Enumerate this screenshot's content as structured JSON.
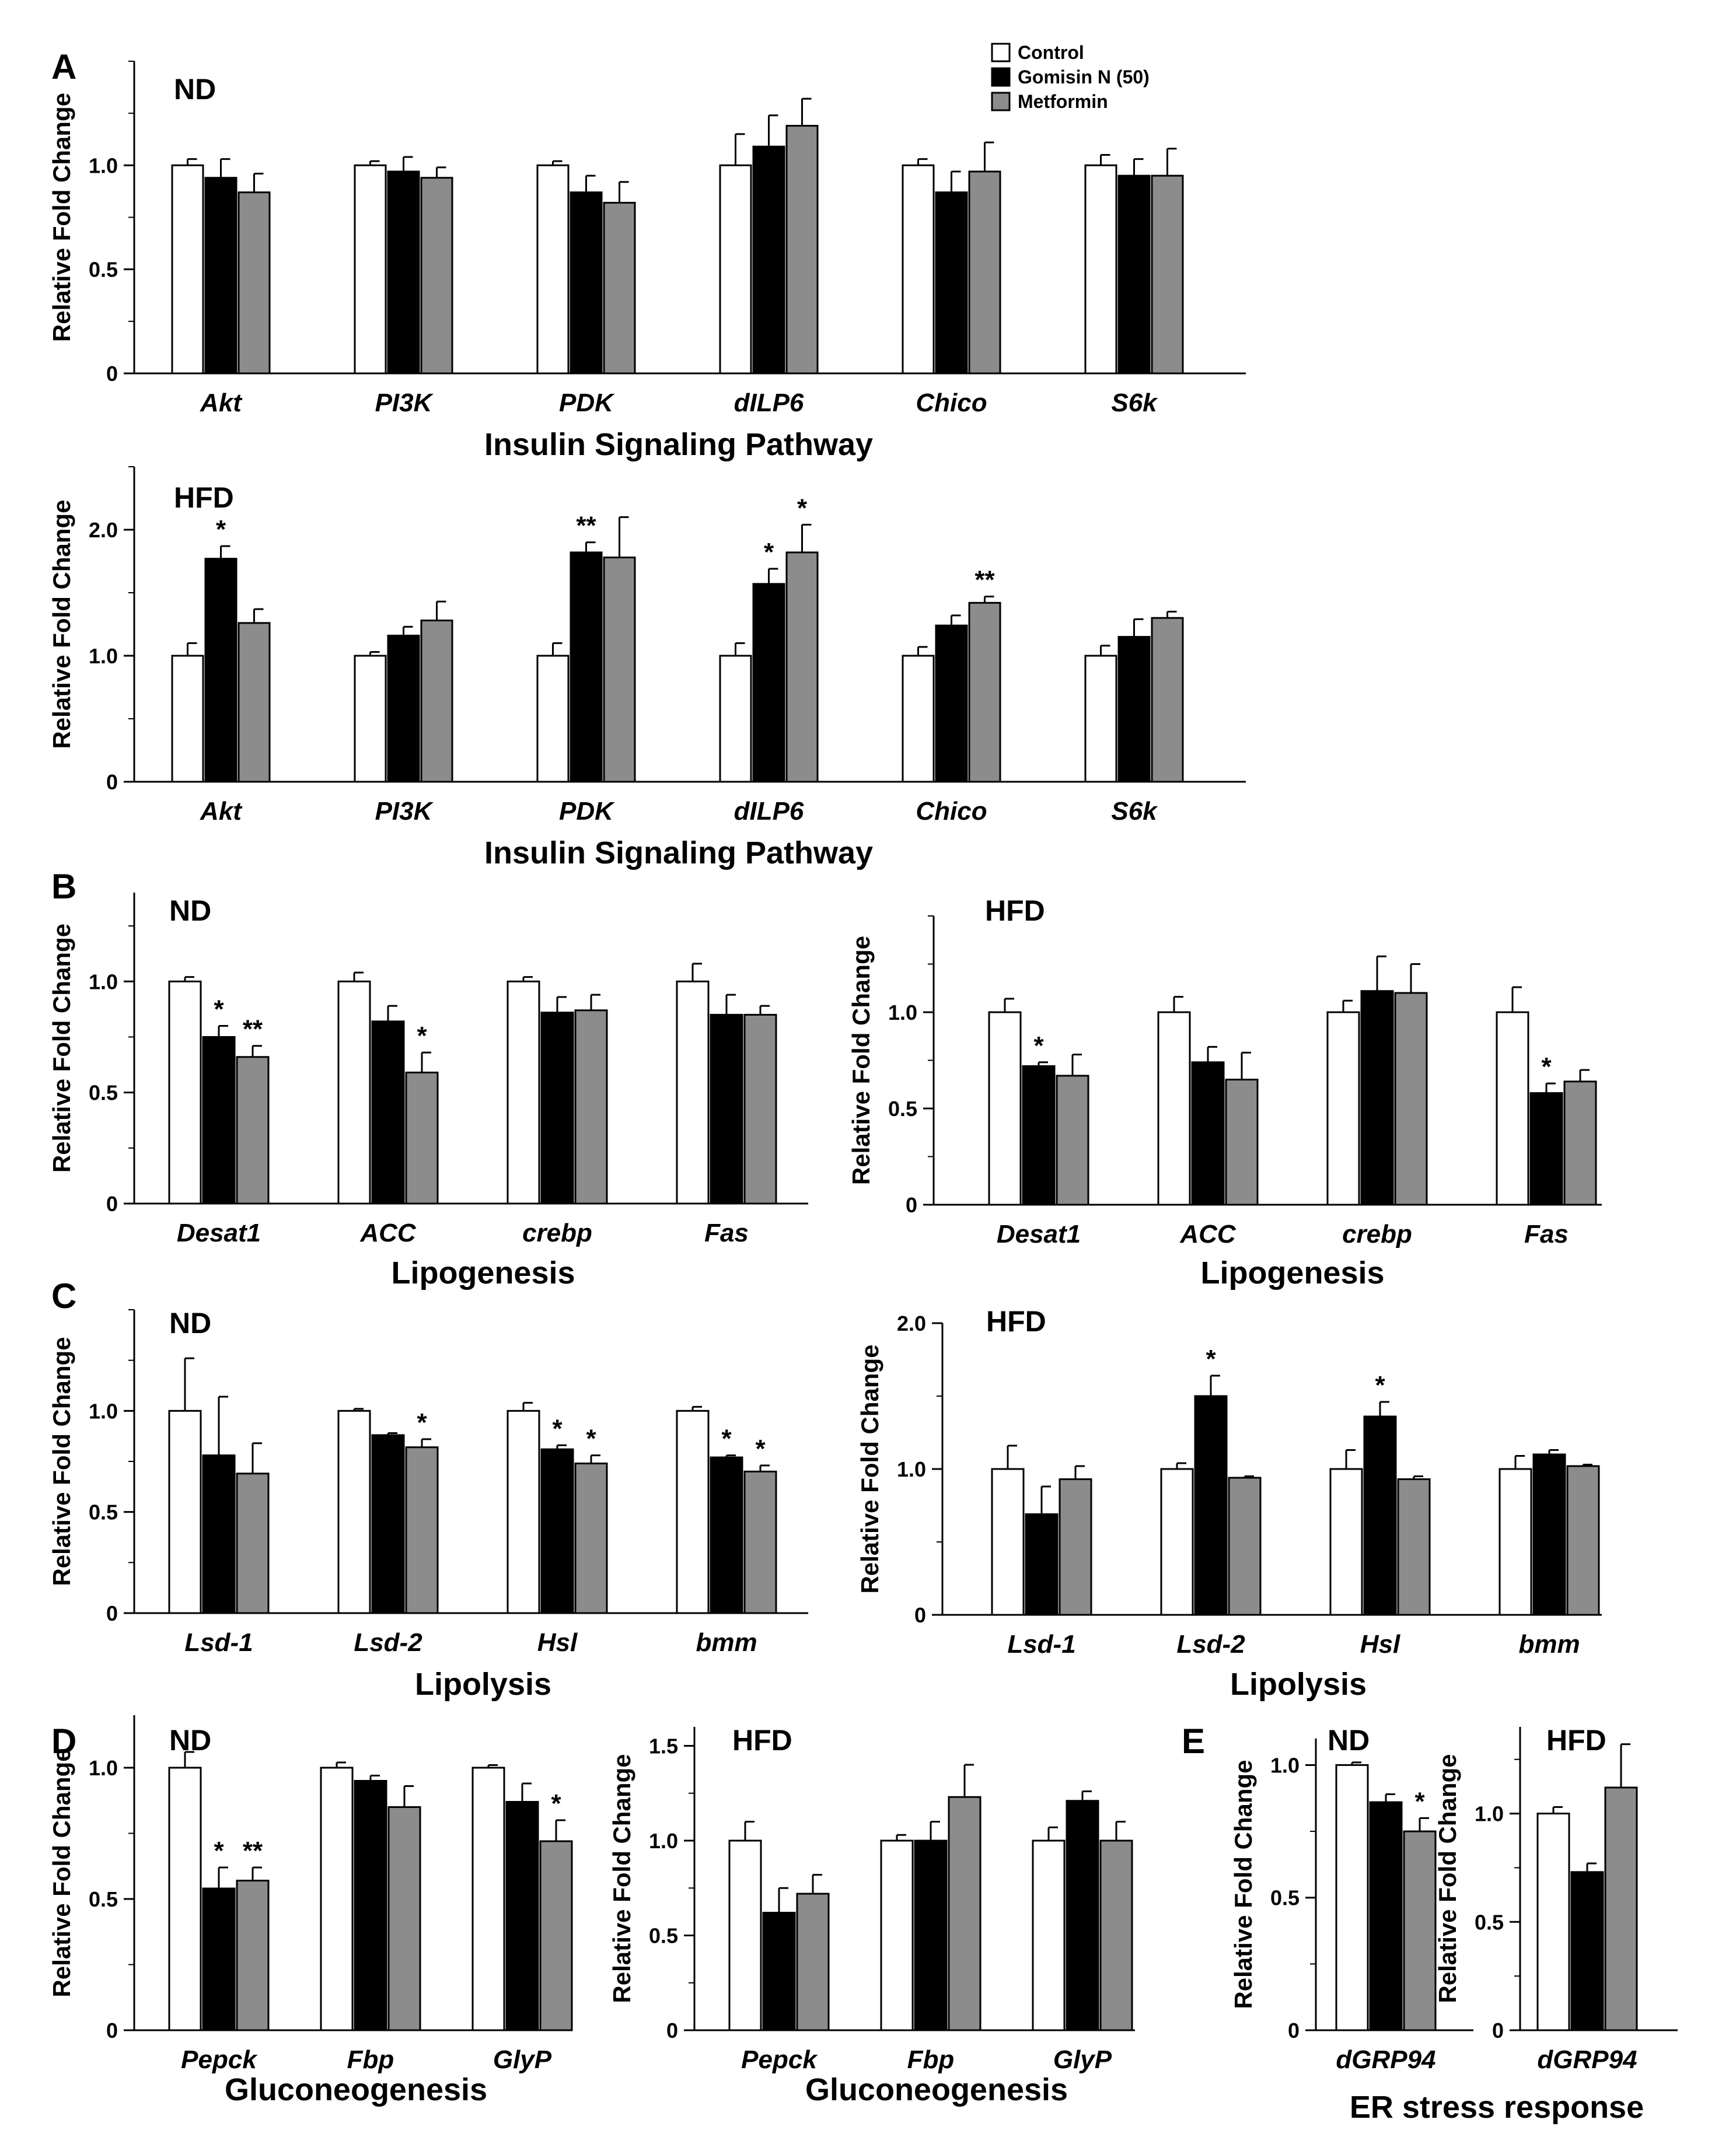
{
  "colors": {
    "control": "#ffffff",
    "gomisin": "#000000",
    "metformin": "#8c8c8c",
    "stroke": "#000000"
  },
  "legend": [
    "Control",
    "Gomisin N (50)",
    "Metformin"
  ],
  "series_names": [
    "Control",
    "Gomisin N (50)",
    "Metformin"
  ],
  "ylabel": "Relative Fold Change",
  "chart_data": [
    {
      "id": "A-ND",
      "panel_letter": "A",
      "type": "bar",
      "title": "ND",
      "xlabel": "Insulin Signaling Pathway",
      "categories": [
        "Akt",
        "PI3K",
        "PDK",
        "dILP6",
        "Chico",
        "S6k"
      ],
      "ylim": [
        0,
        1.5
      ],
      "yticks": [
        "1.0",
        "0.5",
        "0"
      ],
      "series": [
        {
          "name": "Control",
          "values": [
            1.0,
            1.0,
            1.0,
            1.0,
            1.0,
            1.0
          ],
          "errors": [
            0.03,
            0.02,
            0.02,
            0.15,
            0.03,
            0.05
          ]
        },
        {
          "name": "Gomisin N (50)",
          "values": [
            0.94,
            0.97,
            0.87,
            1.09,
            0.87,
            0.95
          ],
          "errors": [
            0.09,
            0.07,
            0.08,
            0.15,
            0.1,
            0.08
          ]
        },
        {
          "name": "Metformin",
          "values": [
            0.87,
            0.94,
            0.82,
            1.19,
            0.97,
            0.95
          ],
          "errors": [
            0.09,
            0.05,
            0.1,
            0.13,
            0.14,
            0.13
          ]
        }
      ],
      "annotations": [
        [
          "",
          "",
          ""
        ],
        [
          "",
          "",
          ""
        ],
        [
          "",
          "",
          ""
        ],
        [
          "",
          "",
          ""
        ],
        [
          "",
          "",
          ""
        ],
        [
          "",
          "",
          ""
        ]
      ]
    },
    {
      "id": "A-HFD",
      "panel_letter": "",
      "type": "bar",
      "title": "HFD",
      "xlabel": "Insulin Signaling Pathway",
      "categories": [
        "Akt",
        "PI3K",
        "PDK",
        "dILP6",
        "Chico",
        "S6k"
      ],
      "ylim": [
        0,
        2.5
      ],
      "yticks": [
        "2.0",
        "1.0",
        "0"
      ],
      "series": [
        {
          "name": "Control",
          "values": [
            1.0,
            1.0,
            1.0,
            1.0,
            1.0,
            1.0
          ],
          "errors": [
            0.1,
            0.03,
            0.1,
            0.1,
            0.07,
            0.08
          ]
        },
        {
          "name": "Gomisin N (50)",
          "values": [
            1.77,
            1.16,
            1.82,
            1.57,
            1.24,
            1.15
          ],
          "errors": [
            0.1,
            0.07,
            0.08,
            0.12,
            0.08,
            0.14
          ]
        },
        {
          "name": "Metformin",
          "values": [
            1.26,
            1.28,
            1.78,
            1.82,
            1.42,
            1.3
          ],
          "errors": [
            0.11,
            0.15,
            0.32,
            0.22,
            0.05,
            0.05
          ]
        }
      ],
      "annotations": [
        [
          "",
          "*",
          ""
        ],
        [
          "",
          "",
          ""
        ],
        [
          "",
          "**",
          ""
        ],
        [
          "",
          "*",
          "*"
        ],
        [
          "",
          "",
          "**"
        ],
        [
          "",
          "",
          ""
        ]
      ]
    },
    {
      "id": "B-ND",
      "panel_letter": "B",
      "type": "bar",
      "title": "ND",
      "xlabel": "Lipogenesis",
      "categories": [
        "Desat1",
        "ACC",
        "crebp",
        "Fas"
      ],
      "ylim": [
        0,
        1.4
      ],
      "yticks": [
        "1.0",
        "0.5",
        "0"
      ],
      "series": [
        {
          "name": "Control",
          "values": [
            1.0,
            1.0,
            1.0,
            1.0
          ],
          "errors": [
            0.02,
            0.04,
            0.02,
            0.08
          ]
        },
        {
          "name": "Gomisin N (50)",
          "values": [
            0.75,
            0.82,
            0.86,
            0.85
          ],
          "errors": [
            0.05,
            0.07,
            0.07,
            0.09
          ]
        },
        {
          "name": "Metformin",
          "values": [
            0.66,
            0.59,
            0.87,
            0.85
          ],
          "errors": [
            0.05,
            0.09,
            0.07,
            0.04
          ]
        }
      ],
      "annotations": [
        [
          "",
          "*",
          "**"
        ],
        [
          "",
          "",
          "*"
        ],
        [
          "",
          "",
          ""
        ],
        [
          "",
          "",
          ""
        ]
      ]
    },
    {
      "id": "B-HFD",
      "panel_letter": "",
      "type": "bar",
      "title": "HFD",
      "xlabel": "Lipogenesis",
      "categories": [
        "Desat1",
        "ACC",
        "crebp",
        "Fas"
      ],
      "ylim": [
        0,
        1.5
      ],
      "yticks": [
        "1.0",
        "0.5",
        "0"
      ],
      "series": [
        {
          "name": "Control",
          "values": [
            1.0,
            1.0,
            1.0,
            1.0
          ],
          "errors": [
            0.07,
            0.08,
            0.06,
            0.13
          ]
        },
        {
          "name": "Gomisin N (50)",
          "values": [
            0.72,
            0.74,
            1.11,
            0.58
          ],
          "errors": [
            0.02,
            0.08,
            0.18,
            0.05
          ]
        },
        {
          "name": "Metformin",
          "values": [
            0.67,
            0.65,
            1.1,
            0.64
          ],
          "errors": [
            0.11,
            0.14,
            0.15,
            0.06
          ]
        }
      ],
      "annotations": [
        [
          "",
          "*",
          ""
        ],
        [
          "",
          "",
          ""
        ],
        [
          "",
          "",
          ""
        ],
        [
          "",
          "*",
          ""
        ]
      ]
    },
    {
      "id": "C-ND",
      "panel_letter": "C",
      "type": "bar",
      "title": "ND",
      "xlabel": "Lipolysis",
      "categories": [
        "Lsd-1",
        "Lsd-2",
        "Hsl",
        "bmm"
      ],
      "ylim": [
        0,
        1.5
      ],
      "yticks": [
        "1.0",
        "0.5",
        "0"
      ],
      "series": [
        {
          "name": "Control",
          "values": [
            1.0,
            1.0,
            1.0,
            1.0
          ],
          "errors": [
            0.26,
            0.01,
            0.04,
            0.02
          ]
        },
        {
          "name": "Gomisin N (50)",
          "values": [
            0.78,
            0.88,
            0.81,
            0.77
          ],
          "errors": [
            0.29,
            0.01,
            0.02,
            0.01
          ]
        },
        {
          "name": "Metformin",
          "values": [
            0.69,
            0.82,
            0.74,
            0.7
          ],
          "errors": [
            0.15,
            0.04,
            0.04,
            0.03
          ]
        }
      ],
      "annotations": [
        [
          "",
          "",
          ""
        ],
        [
          "",
          "",
          "*"
        ],
        [
          "",
          "*",
          "*"
        ],
        [
          "",
          "*",
          "*"
        ]
      ]
    },
    {
      "id": "C-HFD",
      "panel_letter": "",
      "type": "bar",
      "title": "HFD",
      "xlabel": "Lipolysis",
      "categories": [
        "Lsd-1",
        "Lsd-2",
        "Hsl",
        "bmm"
      ],
      "ylim": [
        0,
        2.0
      ],
      "yticks": [
        "2.0",
        "1.0",
        "0"
      ],
      "series": [
        {
          "name": "Control",
          "values": [
            1.0,
            1.0,
            1.0,
            1.0
          ],
          "errors": [
            0.16,
            0.04,
            0.13,
            0.09
          ]
        },
        {
          "name": "Gomisin N (50)",
          "values": [
            0.69,
            1.5,
            1.36,
            1.1
          ],
          "errors": [
            0.19,
            0.14,
            0.1,
            0.03
          ]
        },
        {
          "name": "Metformin",
          "values": [
            0.93,
            0.94,
            0.93,
            1.02
          ],
          "errors": [
            0.09,
            0.01,
            0.02,
            0.01
          ]
        }
      ],
      "annotations": [
        [
          "",
          "",
          ""
        ],
        [
          "",
          "*",
          ""
        ],
        [
          "",
          "*",
          ""
        ],
        [
          "",
          "",
          ""
        ]
      ]
    },
    {
      "id": "D-ND",
      "panel_letter": "D",
      "type": "bar",
      "title": "ND",
      "xlabel": "Gluconeogenesis",
      "categories": [
        "Pepck",
        "Fbp",
        "GlyP"
      ],
      "ylim": [
        0,
        1.2
      ],
      "yticks": [
        "1.0",
        "0.5",
        "0"
      ],
      "series": [
        {
          "name": "Control",
          "values": [
            1.0,
            1.0,
            1.0
          ],
          "errors": [
            0.06,
            0.02,
            0.01
          ]
        },
        {
          "name": "Gomisin N (50)",
          "values": [
            0.54,
            0.95,
            0.87
          ],
          "errors": [
            0.08,
            0.02,
            0.07
          ]
        },
        {
          "name": "Metformin",
          "values": [
            0.57,
            0.85,
            0.72
          ],
          "errors": [
            0.05,
            0.08,
            0.08
          ]
        }
      ],
      "annotations": [
        [
          "",
          "*",
          "**"
        ],
        [
          "",
          "",
          ""
        ],
        [
          "",
          "",
          "*"
        ]
      ]
    },
    {
      "id": "D-HFD",
      "panel_letter": "",
      "type": "bar",
      "title": "HFD",
      "xlabel": "Gluconeogenesis",
      "categories": [
        "Pepck",
        "Fbp",
        "GlyP"
      ],
      "ylim": [
        0,
        1.6
      ],
      "yticks": [
        "1.5",
        "1.0",
        "0.5",
        "0"
      ],
      "series": [
        {
          "name": "Control",
          "values": [
            1.0,
            1.0,
            1.0
          ],
          "errors": [
            0.1,
            0.03,
            0.07
          ]
        },
        {
          "name": "Gomisin N (50)",
          "values": [
            0.62,
            1.0,
            1.21
          ],
          "errors": [
            0.13,
            0.1,
            0.05
          ]
        },
        {
          "name": "Metformin",
          "values": [
            0.72,
            1.23,
            1.0
          ],
          "errors": [
            0.1,
            0.17,
            0.1
          ]
        }
      ],
      "annotations": [
        [
          "",
          "",
          ""
        ],
        [
          "",
          "",
          ""
        ],
        [
          "",
          "",
          ""
        ]
      ]
    },
    {
      "id": "E-ND",
      "panel_letter": "E",
      "type": "bar",
      "title": "ND",
      "xlabel": "",
      "categories": [
        "dGRP94"
      ],
      "ylim": [
        0,
        1.1
      ],
      "yticks": [
        "1.0",
        "0.5",
        "0"
      ],
      "series": [
        {
          "name": "Control",
          "values": [
            1.0
          ],
          "errors": [
            0.01
          ]
        },
        {
          "name": "Gomisin N (50)",
          "values": [
            0.86
          ],
          "errors": [
            0.03
          ]
        },
        {
          "name": "Metformin",
          "values": [
            0.75
          ],
          "errors": [
            0.05
          ]
        }
      ],
      "annotations": [
        [
          "",
          "",
          "*"
        ]
      ]
    },
    {
      "id": "E-HFD",
      "panel_letter": "",
      "type": "bar",
      "title": "HFD",
      "xlabel": "",
      "categories": [
        "dGRP94"
      ],
      "ylim": [
        0,
        1.4
      ],
      "yticks": [
        "1.0",
        "0.5",
        "0"
      ],
      "series": [
        {
          "name": "Control",
          "values": [
            1.0
          ],
          "errors": [
            0.03
          ]
        },
        {
          "name": "Gomisin N (50)",
          "values": [
            0.73
          ],
          "errors": [
            0.04
          ]
        },
        {
          "name": "Metformin",
          "values": [
            1.12
          ],
          "errors": [
            0.2
          ]
        }
      ],
      "annotations": [
        [
          "",
          "",
          ""
        ]
      ]
    }
  ],
  "panel_e_xlabel": "ER stress response"
}
